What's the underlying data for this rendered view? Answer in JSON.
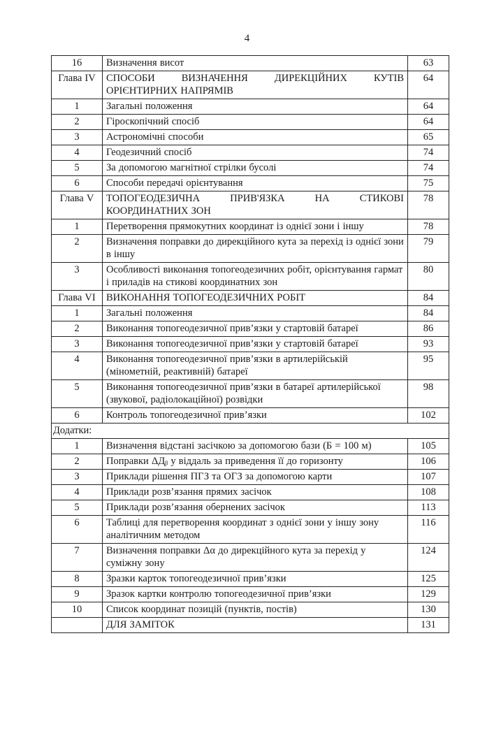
{
  "page": {
    "number": "4"
  },
  "table": {
    "rows": [
      {
        "num": "16",
        "title": "Визначення висот",
        "page": "63"
      },
      {
        "type": "chapter",
        "num": "Глава IV",
        "lines": [
          "СПОСОБИ ВИЗНАЧЕННЯ ДИРЕКЦІЙНИХ КУТІВ",
          "ОРІЄНТИРНИХ НАПРЯМІВ"
        ],
        "page": "64"
      },
      {
        "num": "1",
        "title": "Загальні положення",
        "page": "64"
      },
      {
        "num": "2",
        "title": "Гіроскопічний спосіб",
        "page": "64"
      },
      {
        "num": "3",
        "title": "Астрономічні способи",
        "page": "65"
      },
      {
        "num": "4",
        "title": "Геодезичний спосіб",
        "page": "74"
      },
      {
        "num": "5",
        "title": "За допомогою магнітної стрілки бусолі",
        "page": "74"
      },
      {
        "num": "6",
        "title": "Способи передачі орієнтування",
        "page": "75"
      },
      {
        "type": "chapter",
        "num": "Глава V",
        "lines": [
          "ТОПОГЕОДЕЗИЧНА ПРИВ'ЯЗКА НА СТИКОВІ",
          "КООРДИНАТНИХ ЗОН"
        ],
        "page": "78"
      },
      {
        "num": "1",
        "title": "Перетворення прямокутних координат із однієї зони і іншу",
        "page": "78"
      },
      {
        "num": "2",
        "title": "Визначення поправки до дирекційного кута за перехід із однієї зони в іншу",
        "page": "79"
      },
      {
        "num": "3",
        "title": "Особливості виконання топогеодезичних робіт, орієнтування гармат і приладів на стикові координатних зон",
        "page": "80"
      },
      {
        "type": "chapter",
        "num": "Глава VI",
        "lines": [
          "ВИКОНАННЯ ТОПОГЕОДЕЗИЧНИХ РОБІТ"
        ],
        "page": "84"
      },
      {
        "num": "1",
        "title": "Загальні положення",
        "page": "84"
      },
      {
        "num": "2",
        "title": "Виконання топогеодезичної прив’язки у стартовій батареї",
        "page": "86"
      },
      {
        "num": "3",
        "title": "Виконання топогеодезичної прив’язки у стартовій батареї",
        "page": "93"
      },
      {
        "num": "4",
        "title": "Виконання топогеодезичної прив’язки в артилерійській (мінометній, реактивній) батареї",
        "page": "95"
      },
      {
        "num": "5",
        "title": "Виконання топогеодезичної прив’язки в батареї артилерійської (звукової, радіолокаційної) розвідки",
        "page": "98"
      },
      {
        "num": "6",
        "title": "Контроль топогеодезичної прив’язки",
        "page": "102"
      },
      {
        "type": "section",
        "title": "Додатки:"
      },
      {
        "num": "1",
        "title": "Визначення відстані засічкою за допомогою бази (Б = 100 м)",
        "page": "105"
      },
      {
        "num": "2",
        "title": "Поправки ΔДᵦ у віддаль за приведення її до горизонту",
        "page": "106"
      },
      {
        "num": "3",
        "title": "Приклади рішення ПГЗ та ОГЗ за допомогою карти",
        "page": "107"
      },
      {
        "num": "4",
        "title": "Приклади розв’язання прямих засічок",
        "page": "108"
      },
      {
        "num": "5",
        "title": "Приклади розв’язання обернених засічок",
        "page": "113"
      },
      {
        "num": "6",
        "title": "Таблиці для перетворення координат з однієї зони у іншу зону аналітичним методом",
        "page": "116"
      },
      {
        "num": "7",
        "title": "Визначення поправки Δα до дирекційного кута за перехід у суміжну зону",
        "page": "124"
      },
      {
        "num": "8",
        "title": "Зразки карток топогеодезичної прив’язки",
        "page": "125"
      },
      {
        "num": "9",
        "title": "Зразок картки контролю топогеодезичної прив’язки",
        "page": "129"
      },
      {
        "num": "10",
        "title": "Список координат позицій (пунктів, постів)",
        "page": "130"
      },
      {
        "num": "",
        "title": "ДЛЯ ЗАМІТОК",
        "page": "131"
      }
    ]
  }
}
